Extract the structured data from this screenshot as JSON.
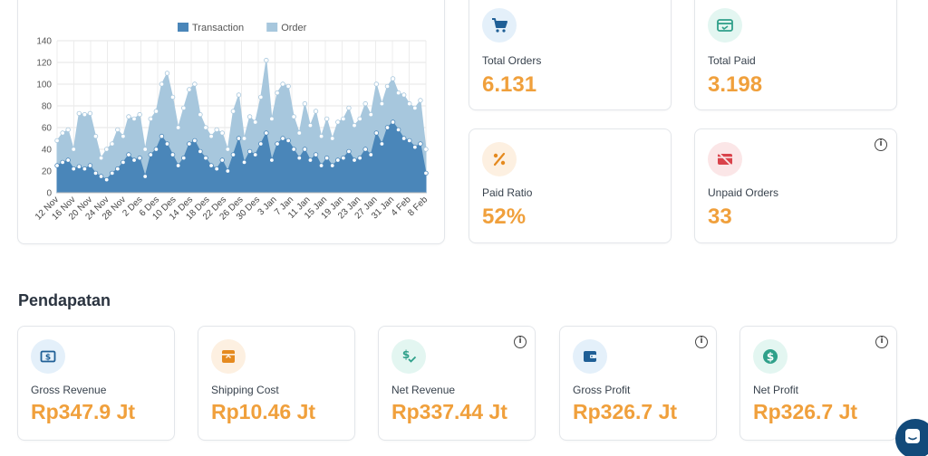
{
  "chart_data": {
    "type": "area",
    "legend": [
      {
        "name": "Transaction",
        "color": "#4a86b9"
      },
      {
        "name": "Order",
        "color": "#a7c7dd"
      }
    ],
    "legend_position": "top",
    "ylim": [
      0,
      140
    ],
    "yticks": [
      0,
      20,
      40,
      60,
      80,
      100,
      120,
      140
    ],
    "xtick_labels": [
      "12 Nov",
      "16 Nov",
      "20 Nov",
      "24 Nov",
      "28 Nov",
      "2 Des",
      "6 Des",
      "10 Des",
      "14 Des",
      "18 Des",
      "22 Des",
      "26 Des",
      "30 Des",
      "3 Jan",
      "7 Jan",
      "11 Jan",
      "15 Jan",
      "19 Jan",
      "23 Jan",
      "27 Jan",
      "31 Jan",
      "4 Feb",
      "8 Feb"
    ],
    "grid": true,
    "series": [
      {
        "name": "Order",
        "values": [
          48,
          55,
          58,
          40,
          73,
          72,
          73,
          52,
          32,
          40,
          45,
          58,
          52,
          70,
          68,
          72,
          40,
          68,
          75,
          100,
          110,
          88,
          60,
          78,
          95,
          100,
          72,
          60,
          52,
          58,
          55,
          40,
          75,
          90,
          50,
          70,
          65,
          88,
          122,
          68,
          92,
          100,
          98,
          70,
          55,
          82,
          62,
          75,
          52,
          68,
          50,
          65,
          68,
          78,
          62,
          68,
          82,
          72,
          100,
          82,
          98,
          105,
          92,
          90,
          82,
          78,
          85,
          40
        ]
      },
      {
        "name": "Transaction",
        "values": [
          25,
          28,
          30,
          22,
          24,
          22,
          25,
          18,
          15,
          12,
          18,
          22,
          28,
          35,
          30,
          32,
          15,
          35,
          40,
          52,
          45,
          35,
          25,
          32,
          45,
          48,
          38,
          32,
          25,
          22,
          30,
          20,
          35,
          50,
          28,
          38,
          35,
          45,
          55,
          30,
          45,
          50,
          48,
          40,
          32,
          40,
          30,
          35,
          25,
          32,
          25,
          30,
          32,
          38,
          30,
          32,
          40,
          35,
          55,
          45,
          60,
          65,
          58,
          50,
          48,
          42,
          45,
          18
        ]
      }
    ]
  },
  "stats": [
    {
      "label": "Total Orders",
      "value": "6.131",
      "icon": "cart-icon",
      "icon_color": "#1f5f96",
      "bg": "#e4f0fa"
    },
    {
      "label": "Total Paid",
      "value": "3.198",
      "icon": "paid-card-icon",
      "icon_color": "#2fa08a",
      "bg": "#e3f6f1"
    },
    {
      "label": "Paid Ratio",
      "value": "52%",
      "icon": "percent-icon",
      "icon_color": "#e58a1f",
      "bg": "#fdf0e1"
    },
    {
      "label": "Unpaid Orders",
      "value": "33",
      "icon": "unpaid-card-icon",
      "icon_color": "#d9434b",
      "bg": "#fbe6e7"
    }
  ],
  "section_title": "Pendapatan",
  "revenue": [
    {
      "label": "Gross Revenue",
      "value": "Rp347.9 Jt",
      "icon": "dollar-bill-icon",
      "icon_color": "#1f5f96",
      "bg": "#e4f0fa"
    },
    {
      "label": "Shipping Cost",
      "value": "Rp10.46 Jt",
      "icon": "shipping-box-icon",
      "icon_color": "#e58a1f",
      "bg": "#fdf0e1"
    },
    {
      "label": "Net Revenue",
      "value": "Rp337.44 Jt",
      "icon": "dollar-check-icon",
      "icon_color": "#2fa08a",
      "bg": "#e3f6f1"
    },
    {
      "label": "Gross Profit",
      "value": "Rp326.7 Jt",
      "icon": "wallet-icon",
      "icon_color": "#1f5f96",
      "bg": "#e4f0fa"
    },
    {
      "label": "Net Profit",
      "value": "Rp326.7 Jt",
      "icon": "dollar-coin-icon",
      "icon_color": "#2fa08a",
      "bg": "#e3f6f1"
    }
  ],
  "info_symbol": "i",
  "colors": {
    "accent_orange": "#f0a03c",
    "chat_blue": "#124a7a"
  }
}
